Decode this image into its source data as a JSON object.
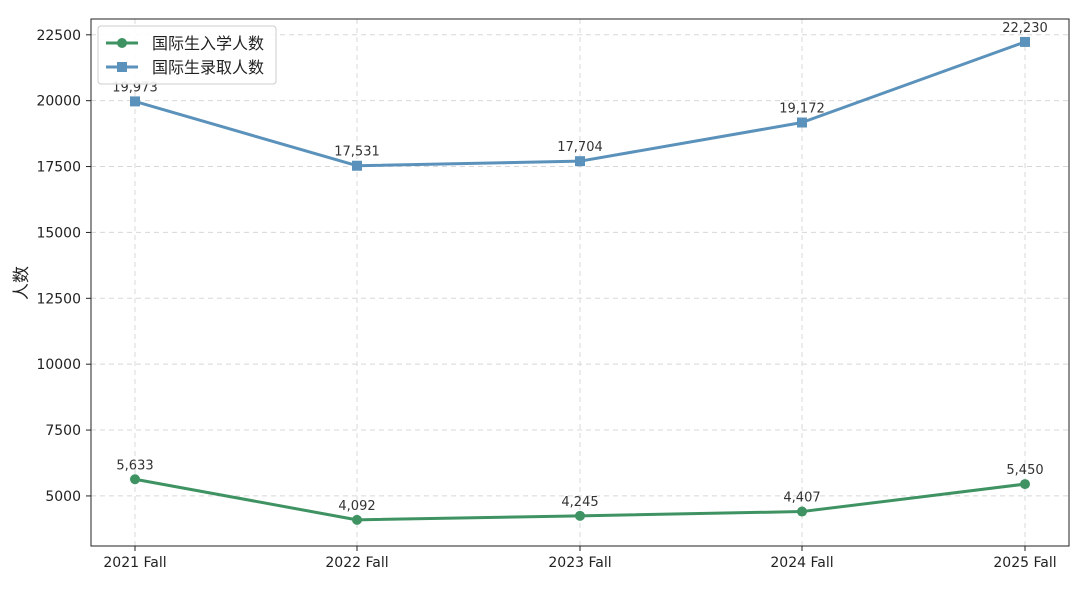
{
  "chart_data": {
    "type": "line",
    "title": "",
    "xlabel": "",
    "ylabel": "人数",
    "categories": [
      "2021 Fall",
      "2022 Fall",
      "2023 Fall",
      "2024 Fall",
      "2025 Fall"
    ],
    "ylim": [
      3100,
      23100
    ],
    "yticks": [
      5000,
      7500,
      10000,
      12500,
      15000,
      17500,
      20000,
      22500
    ],
    "grid": true,
    "legend_position": "top-left",
    "series": [
      {
        "name": "国际生入学人数",
        "marker": "circle",
        "color": "#3f9363",
        "values": [
          5633,
          4092,
          4245,
          4407,
          5450
        ],
        "labels": [
          "5,633",
          "4,092",
          "4,245",
          "4,407",
          "5,450"
        ]
      },
      {
        "name": "国际生录取人数",
        "marker": "square",
        "color": "#5b92bb",
        "values": [
          19973,
          17531,
          17704,
          19172,
          22230
        ],
        "labels": [
          "19,973",
          "17,531",
          "17,704",
          "19,172",
          "22,230"
        ]
      }
    ]
  }
}
